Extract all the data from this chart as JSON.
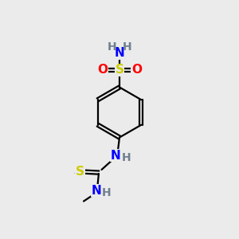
{
  "bg_color": "#ebebeb",
  "atom_colors": {
    "C": "#000000",
    "H": "#708090",
    "N": "#0000ff",
    "O": "#ff0000",
    "S": "#cccc00"
  },
  "figsize": [
    3.0,
    3.0
  ],
  "dpi": 100
}
